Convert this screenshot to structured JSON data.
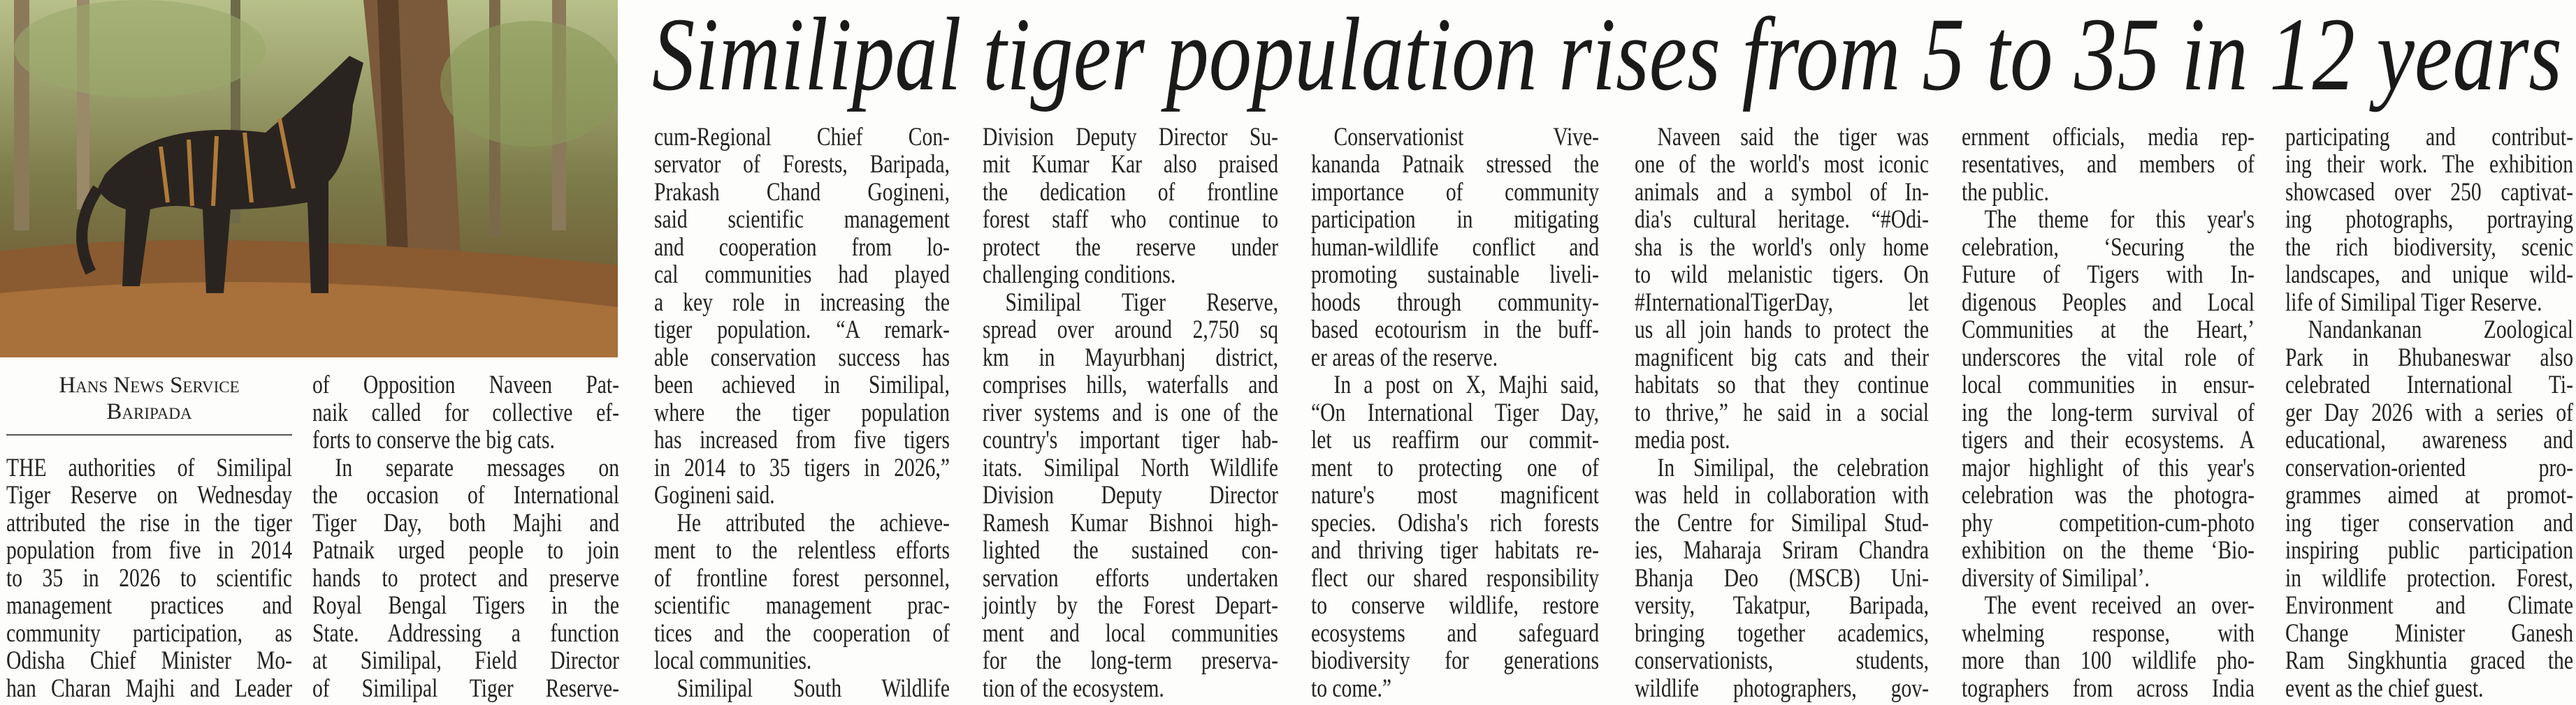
{
  "article": {
    "headline": "Similipal tiger population rises from 5 to 35 in 12 years",
    "byline": {
      "agency": "Hans News Service",
      "place": "Baripada"
    },
    "columns": [
      [
        [
          "THE authorities of Similipal",
          "Tiger Reserve on Wednesday",
          "attributed the rise in the tiger",
          "population from five in 2014",
          "to 35 in 2026 to scientific",
          "management practices and",
          "community participation, as",
          "Odisha Chief Minister Mo-",
          "han Charan Majhi and Leader"
        ]
      ],
      [
        [
          "of Opposition Naveen Pat-",
          "naik called for collective ef-",
          "forts to conserve the big cats."
        ],
        [
          "In separate messages on",
          "the occasion of International",
          "Tiger Day, both Majhi and",
          "Patnaik urged people to join",
          "hands to protect and preserve",
          "Royal Bengal Tigers in the",
          "State. Addressing a function",
          "at Similipal, Field Director",
          "of Similipal Tiger Reserve-"
        ]
      ],
      [
        [
          "cum-Regional Chief Con-",
          "servator of Forests, Baripada,",
          "Prakash Chand Gogineni,",
          "said scientific management",
          "and cooperation from lo-",
          "cal communities had played",
          "a key role in increasing the",
          "tiger population. “A remark-",
          "able conservation success has",
          "been achieved in Similipal,",
          "where the tiger population",
          "has increased from five tigers",
          "in 2014 to 35 tigers in 2026,”",
          "Gogineni said."
        ],
        [
          "He attributed the achieve-",
          "ment to the relentless efforts",
          "of frontline forest personnel,",
          "scientific management prac-",
          "tices and the cooperation of",
          "local communities."
        ],
        [
          "Similipal South Wildlife"
        ]
      ],
      [
        [
          "Division Deputy Director Su-",
          "mit Kumar Kar also praised",
          "the dedication of frontline",
          "forest staff who continue to",
          "protect the reserve under",
          "challenging conditions."
        ],
        [
          "Similipal Tiger Reserve,",
          "spread over around 2,750 sq",
          "km in Mayurbhanj district,",
          "comprises hills, waterfalls and",
          "river systems and is one of the",
          "country's important tiger hab-",
          "itats. Similipal North Wildlife",
          "Division Deputy Director",
          "Ramesh Kumar Bishnoi high-",
          "lighted the sustained con-",
          "servation efforts undertaken",
          "jointly by the Forest Depart-",
          "ment and local communities",
          "for the long-term preserva-",
          "tion of the ecosystem."
        ]
      ],
      [
        [
          "Conservationist Vive-",
          "kananda Patnaik stressed the",
          "importance of community",
          "participation in mitigating",
          "human-wildlife conflict and",
          "promoting sustainable liveli-",
          "hoods through community-",
          "based ecotourism in the buff-",
          "er areas of the reserve."
        ],
        [
          "In a post on X, Majhi said,",
          "“On International Tiger Day,",
          "let us reaffirm our commit-",
          "ment to protecting one of",
          "nature's most magnificent",
          "species. Odisha's rich forests",
          "and thriving tiger habitats re-",
          "flect our shared responsibility",
          "to conserve wildlife, restore",
          "ecosystems and safeguard",
          "biodiversity for generations",
          "to come.”"
        ]
      ],
      [
        [
          "Naveen said the tiger was",
          "one of the world's most iconic",
          "animals and a symbol of In-",
          "dia's cultural heritage. “#Odi-",
          "sha is the world's only home",
          "to wild melanistic tigers. On",
          "#InternationalTigerDay, let",
          "us all join hands to protect the",
          "magnificent big cats and their",
          "habitats so that they continue",
          "to thrive,” he said in a social",
          "media post."
        ],
        [
          "In Similipal, the celebration",
          "was held in collaboration with",
          "the Centre for Similipal Stud-",
          "ies, Maharaja Sriram Chandra",
          "Bhanja Deo (MSCB) Uni-",
          "versity, Takatpur, Baripada,",
          "bringing together academics,",
          "conservationists, students,",
          "wildlife photographers, gov-"
        ]
      ],
      [
        [
          "ernment officials, media rep-",
          "resentatives, and members of",
          "the public."
        ],
        [
          "The theme for this year's",
          "celebration, ‘Securing the",
          "Future of Tigers with In-",
          "digenous Peoples and Local",
          "Communities at the Heart,’",
          "underscores the vital role of",
          "local communities in ensur-",
          "ing the long-term survival of",
          "tigers and their ecosystems. A",
          "major highlight of this year's",
          "celebration was the photogra-",
          "phy competition-cum-photo",
          "exhibition on the theme ‘Bio-",
          "diversity of Similipal’."
        ],
        [
          "The event received an over-",
          "whelming response, with",
          "more than 100 wildlife pho-",
          "tographers from across India"
        ]
      ],
      [
        [
          "participating and contribut-",
          "ing their work. The exhibition",
          "showcased over 250 captivat-",
          "ing photographs, portraying",
          "the rich biodiversity, scenic",
          "landscapes, and unique wild-",
          "life of Similipal Tiger Reserve."
        ],
        [
          "Nandankanan Zoological",
          "Park in Bhubaneswar also",
          "celebrated International Ti-",
          "ger Day 2026 with a series of",
          "educational, awareness and",
          "conservation-oriented pro-",
          "grammes aimed at promot-",
          "ing tiger conservation and",
          "inspiring public participation",
          "in wildlife protection. Forest,",
          "Environment and Climate",
          "Change Minister Ganesh",
          "Ram Singkhuntia graced the",
          "event as the chief guest."
        ]
      ]
    ]
  }
}
